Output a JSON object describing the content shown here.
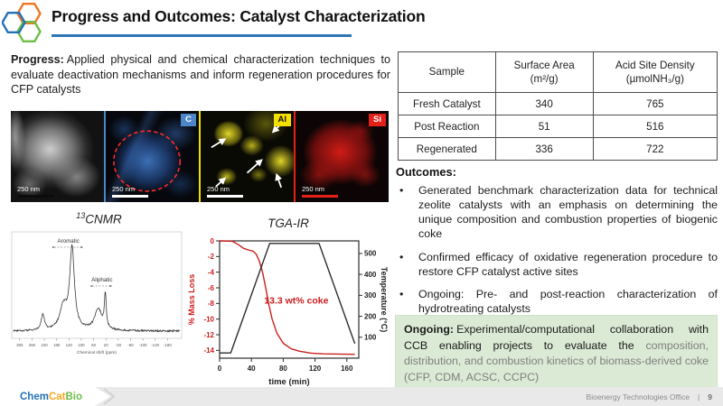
{
  "slide": {
    "title": "Progress and Outcomes: Catalyst Characterization",
    "accent_blue": "#2e75b6"
  },
  "progress": {
    "label": "Progress:",
    "text": "Applied physical and chemical characterization techniques to evaluate deactivation mechanisms and inform regeneration procedures for CFP catalysts"
  },
  "micrographs": {
    "panels": [
      {
        "label": "",
        "scale_bar": "250 nm",
        "kind": "tem-grayscale"
      },
      {
        "label": "C",
        "scale_bar": "250 nm",
        "kind": "eds-carbon-map",
        "label_bg": "#4a86c8"
      },
      {
        "label": "Al",
        "scale_bar": "250 nm",
        "kind": "eds-aluminum-map",
        "label_bg": "#f3e000"
      },
      {
        "label": "Si",
        "scale_bar": "250 nm",
        "kind": "eds-silicon-map",
        "label_bg": "#e32119"
      }
    ]
  },
  "table": {
    "headers": [
      "Sample",
      "Surface Area\n(m²/g)",
      "Acid Site Density\n(µmolNH₃/g)"
    ],
    "rows": [
      [
        "Fresh Catalyst",
        "340",
        "765"
      ],
      [
        "Post Reaction",
        "51",
        "516"
      ],
      [
        "Regenerated",
        "336",
        "722"
      ]
    ]
  },
  "outcomes": {
    "heading": "Outcomes:",
    "bullets": [
      "Generated benchmark characterization data for technical zeolite catalysts with an emphasis on determining the unique composition and combustion properties of biogenic coke",
      "Confirmed efficacy of oxidative regeneration procedure to restore CFP catalyst active sites",
      "Ongoing: Pre- and post-reaction characterization of hydrotreating catalysts"
    ]
  },
  "ongoing": {
    "label": "Ongoing:",
    "text_black": "Experimental/computational collaboration with CCB enabling projects to evaluate the",
    "text_gray": "composition, distribution, and combustion kinetics of biomass-derived coke (CFP, CDM, ACSC, CCPC)"
  },
  "footer": {
    "logo": {
      "chem": "Chem",
      "cat": "Cat",
      "bio": "Bio"
    },
    "office": "Bioenergy Technologies Office",
    "separator": "|",
    "page": "9"
  },
  "chart_data": [
    {
      "id": "cnmr",
      "type": "line",
      "title_sup": "13",
      "title_main": "CNMR",
      "xlabel": "Chemical shift (ppm)",
      "x_range": [
        320,
        -220
      ],
      "x_ticks": [
        300,
        260,
        220,
        180,
        140,
        100,
        60,
        20,
        -20,
        -60,
        -100,
        -140,
        -180
      ],
      "peaks": [
        {
          "name": "spinning-sideband",
          "center": 225,
          "width": 6,
          "height": 0.2
        },
        {
          "name": "aromatic-shoulder",
          "center": 158,
          "width": 14,
          "height": 0.28
        },
        {
          "name": "aromatic-main",
          "center": 130,
          "width": 9,
          "height": 1.0
        },
        {
          "name": "aliphatic-hump",
          "center": 45,
          "width": 14,
          "height": 0.26
        },
        {
          "name": "aliphatic-sharp",
          "center": 22,
          "width": 3.5,
          "height": 0.42
        }
      ],
      "annotations": [
        {
          "text": "Aromatic",
          "from_ppm": 188,
          "to_ppm": 96
        },
        {
          "text": "Aliphatic",
          "from_ppm": 64,
          "to_ppm": 2
        }
      ],
      "line_color": "#3a3a3a"
    },
    {
      "id": "tga-ir",
      "type": "line",
      "title": "TGA-IR",
      "xlabel": "time (min)",
      "ylabel_left": "% Mass Loss",
      "ylabel_right": "Temperature (°C)",
      "x_range": [
        0,
        175
      ],
      "x_ticks": [
        0,
        40,
        80,
        120,
        160
      ],
      "y_left_range": [
        0,
        -15
      ],
      "y_left_ticks": [
        0,
        -2,
        -4,
        -6,
        -8,
        -10,
        -12,
        -14
      ],
      "y_right_range": [
        0,
        560
      ],
      "y_right_ticks": [
        100,
        200,
        300,
        400,
        500
      ],
      "annotation": "13.3 wt% coke",
      "annotation_at": [
        56,
        -8
      ],
      "series": [
        {
          "name": "% Mass Loss",
          "axis": "left",
          "color": "#cc1f1f",
          "points": [
            [
              0,
              0
            ],
            [
              16,
              -0.05
            ],
            [
              24,
              -0.5
            ],
            [
              30,
              -0.95
            ],
            [
              36,
              -1.15
            ],
            [
              42,
              -1.3
            ],
            [
              46,
              -1.7
            ],
            [
              50,
              -2.6
            ],
            [
              54,
              -4.0
            ],
            [
              58,
              -6.0
            ],
            [
              62,
              -8.2
            ],
            [
              66,
              -10.0
            ],
            [
              72,
              -11.8
            ],
            [
              80,
              -13.1
            ],
            [
              90,
              -13.8
            ],
            [
              100,
              -14.1
            ],
            [
              115,
              -14.35
            ],
            [
              130,
              -14.45
            ],
            [
              170,
              -14.5
            ]
          ]
        },
        {
          "name": "Temperature",
          "axis": "right",
          "color": "#2b2b2b",
          "points": [
            [
              0,
              25
            ],
            [
              14,
              25
            ],
            [
              63,
              548
            ],
            [
              125,
              548
            ],
            [
              170,
              70
            ]
          ]
        }
      ]
    }
  ]
}
